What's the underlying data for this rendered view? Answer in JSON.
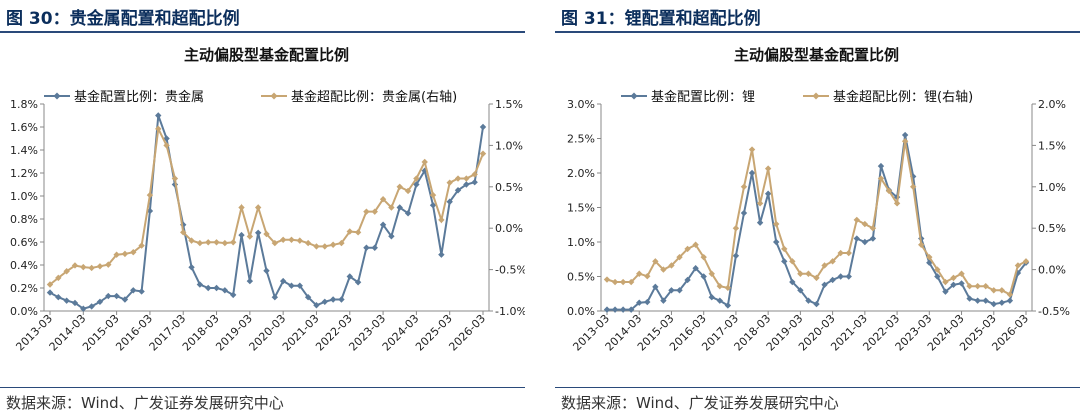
{
  "colors": {
    "weight_line": "#5b7a9a",
    "over_line": "#c8a673",
    "fig_title": "#0b2e5c"
  },
  "left": {
    "fig_title": "图 30：贵金属配置和超配比例",
    "source": "数据来源：Wind、广发证券发展研究中心",
    "chart_data": {
      "type": "line",
      "title": "主动偏股型基金配置比例",
      "x_ticks": [
        "2013-03",
        "2014-03",
        "2015-03",
        "2016-03",
        "2017-03",
        "2018-03",
        "2019-03",
        "2020-03",
        "2021-03",
        "2022-03",
        "2023-03",
        "2024-03",
        "2025-03",
        "2026-03"
      ],
      "y_left_ticks": [
        "0.0%",
        "0.2%",
        "0.4%",
        "0.6%",
        "0.8%",
        "1.0%",
        "1.2%",
        "1.4%",
        "1.6%",
        "1.8%"
      ],
      "y_right_ticks": [
        "-1.0%",
        "-0.5%",
        "0.0%",
        "0.5%",
        "1.0%",
        "1.5%"
      ],
      "ylim_left": [
        0,
        1.8
      ],
      "ylim_right": [
        -1.0,
        1.5
      ],
      "series": [
        {
          "name": "基金配置比例：贵金属",
          "axis": "left",
          "values": [
            0.16,
            0.12,
            0.09,
            0.07,
            0.02,
            0.04,
            0.08,
            0.13,
            0.13,
            0.1,
            0.18,
            0.17,
            0.87,
            1.7,
            1.5,
            1.1,
            0.75,
            0.38,
            0.23,
            0.2,
            0.2,
            0.18,
            0.14,
            0.66,
            0.26,
            0.68,
            0.35,
            0.12,
            0.26,
            0.22,
            0.22,
            0.12,
            0.05,
            0.08,
            0.1,
            0.1,
            0.3,
            0.25,
            0.55,
            0.55,
            0.75,
            0.65,
            0.9,
            0.85,
            1.1,
            1.22,
            0.92,
            0.49,
            0.95,
            1.05,
            1.1,
            1.12,
            1.6
          ]
        },
        {
          "name": "基金超配比例：贵金属(右轴)",
          "axis": "right",
          "values": [
            -0.68,
            -0.6,
            -0.52,
            -0.45,
            -0.47,
            -0.48,
            -0.46,
            -0.44,
            -0.32,
            -0.31,
            -0.29,
            -0.21,
            0.4,
            1.2,
            1.0,
            0.6,
            -0.05,
            -0.15,
            -0.18,
            -0.17,
            -0.17,
            -0.18,
            -0.17,
            0.25,
            -0.1,
            0.25,
            -0.07,
            -0.18,
            -0.14,
            -0.14,
            -0.15,
            -0.18,
            -0.22,
            -0.22,
            -0.2,
            -0.18,
            -0.04,
            -0.05,
            0.2,
            0.2,
            0.35,
            0.25,
            0.5,
            0.45,
            0.6,
            0.8,
            0.4,
            0.1,
            0.55,
            0.6,
            0.6,
            0.65,
            0.9
          ]
        }
      ]
    }
  },
  "right": {
    "fig_title": "图 31：锂配置和超配比例",
    "source": "数据来源：Wind、广发证券发展研究中心",
    "chart_data": {
      "type": "line",
      "title": "主动偏股型基金配置比例",
      "x_ticks": [
        "2013-03",
        "2014-03",
        "2015-03",
        "2016-03",
        "2017-03",
        "2018-03",
        "2019-03",
        "2020-03",
        "2021-03",
        "2022-03",
        "2023-03",
        "2024-03",
        "2025-03",
        "2026-03"
      ],
      "y_left_ticks": [
        "0.0%",
        "0.5%",
        "1.0%",
        "1.5%",
        "2.0%",
        "2.5%",
        "3.0%"
      ],
      "y_right_ticks": [
        "-0.5%",
        "0.0%",
        "0.5%",
        "1.0%",
        "1.5%",
        "2.0%"
      ],
      "ylim_left": [
        0,
        3.0
      ],
      "ylim_right": [
        -0.5,
        2.0
      ],
      "series": [
        {
          "name": "基金配置比例：锂",
          "axis": "left",
          "values": [
            0.02,
            0.02,
            0.02,
            0.02,
            0.12,
            0.13,
            0.35,
            0.15,
            0.3,
            0.3,
            0.45,
            0.62,
            0.5,
            0.2,
            0.15,
            0.08,
            0.8,
            1.42,
            2.0,
            1.28,
            1.7,
            1.0,
            0.72,
            0.42,
            0.3,
            0.15,
            0.1,
            0.38,
            0.45,
            0.5,
            0.5,
            1.05,
            1.0,
            1.05,
            2.1,
            1.75,
            1.65,
            2.55,
            1.95,
            1.05,
            0.7,
            0.5,
            0.28,
            0.38,
            0.4,
            0.18,
            0.15,
            0.15,
            0.1,
            0.12,
            0.15,
            0.55,
            0.7
          ]
        },
        {
          "name": "基金超配比例：锂(右轴)",
          "axis": "right",
          "values": [
            -0.12,
            -0.15,
            -0.15,
            -0.15,
            -0.05,
            -0.08,
            0.1,
            0.0,
            0.05,
            0.15,
            0.25,
            0.3,
            0.15,
            -0.05,
            -0.2,
            -0.22,
            0.5,
            1.0,
            1.45,
            0.8,
            1.22,
            0.55,
            0.25,
            0.1,
            -0.05,
            -0.05,
            -0.1,
            0.05,
            0.1,
            0.2,
            0.2,
            0.6,
            0.55,
            0.5,
            1.1,
            0.95,
            0.8,
            1.55,
            1.0,
            0.3,
            0.15,
            0.0,
            -0.15,
            -0.1,
            -0.05,
            -0.2,
            -0.2,
            -0.2,
            -0.25,
            -0.25,
            -0.3,
            0.05,
            0.1
          ]
        }
      ]
    }
  }
}
